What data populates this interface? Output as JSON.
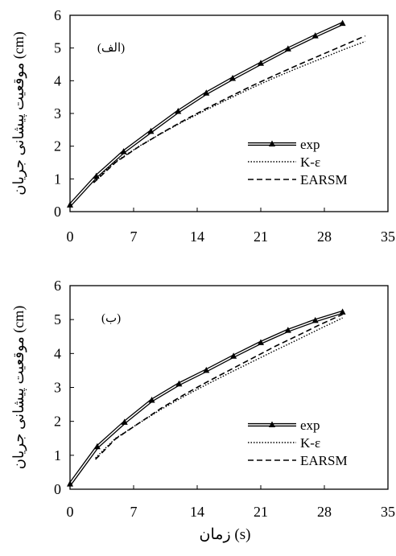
{
  "chart_data": [
    {
      "type": "line",
      "panel_label": "(الف)",
      "ylabel": "موقعیت پیشانی جریان (cm)",
      "xlabel": "",
      "xlim": [
        0,
        35
      ],
      "ylim": [
        0,
        6
      ],
      "xticks": [
        "0",
        "7",
        "14",
        "21",
        "28",
        "35"
      ],
      "yticks": [
        "0",
        "1",
        "2",
        "3",
        "4",
        "5",
        "6"
      ],
      "legend": "right-lower",
      "grid": false,
      "series": [
        {
          "name": "exp",
          "style": "double-line-triangle",
          "color": "#000000",
          "x": [
            0,
            2.9,
            5.9,
            8.9,
            11.9,
            15,
            17.9,
            21,
            24,
            27,
            30
          ],
          "y": [
            0.2,
            1.08,
            1.83,
            2.45,
            3.06,
            3.62,
            4.07,
            4.53,
            4.97,
            5.37,
            5.75
          ]
        },
        {
          "name": "K-ε",
          "style": "dotted",
          "color": "#000000",
          "x": [
            2.6,
            5,
            7.5,
            10,
            12.5,
            15,
            17.5,
            20,
            22.5,
            25,
            27.5,
            30,
            32.5
          ],
          "y": [
            0.92,
            1.52,
            1.98,
            2.38,
            2.76,
            3.11,
            3.45,
            3.78,
            4.09,
            4.38,
            4.66,
            4.94,
            5.2
          ]
        },
        {
          "name": "EARSM",
          "style": "dashed",
          "color": "#000000",
          "x": [
            2.6,
            5,
            7.5,
            10,
            12.5,
            15,
            17.5,
            20,
            22.5,
            25,
            27.5,
            30,
            32.5
          ],
          "y": [
            0.88,
            1.5,
            1.97,
            2.39,
            2.78,
            3.15,
            3.5,
            3.84,
            4.16,
            4.47,
            4.77,
            5.07,
            5.37
          ]
        }
      ]
    },
    {
      "type": "line",
      "panel_label": "(ب)",
      "ylabel": "موقعیت پیشانی جریان (cm)",
      "xlabel": "زمان (s)",
      "xlim": [
        0,
        35
      ],
      "ylim": [
        0,
        6
      ],
      "xticks": [
        "0",
        "7",
        "14",
        "21",
        "28",
        "35"
      ],
      "yticks": [
        "0",
        "1",
        "2",
        "3",
        "4",
        "5",
        "6"
      ],
      "legend": "right-lower",
      "grid": false,
      "series": [
        {
          "name": "exp",
          "style": "double-line-triangle",
          "color": "#000000",
          "x": [
            0,
            3,
            6,
            9,
            12,
            15,
            18,
            21,
            24,
            27,
            30
          ],
          "y": [
            0.15,
            1.25,
            1.97,
            2.62,
            3.1,
            3.5,
            3.92,
            4.32,
            4.68,
            4.97,
            5.22
          ]
        },
        {
          "name": "K-ε",
          "style": "dotted",
          "color": "#000000",
          "x": [
            2.8,
            5,
            7.5,
            10,
            12.5,
            15,
            17.5,
            20,
            22.5,
            25,
            27.5,
            30
          ],
          "y": [
            0.92,
            1.5,
            1.93,
            2.35,
            2.73,
            3.08,
            3.42,
            3.75,
            4.08,
            4.4,
            4.73,
            5.05
          ]
        },
        {
          "name": "EARSM",
          "style": "dashed",
          "color": "#000000",
          "x": [
            2.8,
            5,
            7.5,
            10,
            12.5,
            15,
            17.5,
            20,
            22.5,
            25,
            27.5,
            30
          ],
          "y": [
            0.88,
            1.48,
            1.93,
            2.38,
            2.78,
            3.15,
            3.5,
            3.85,
            4.2,
            4.52,
            4.85,
            5.15
          ]
        }
      ]
    }
  ]
}
